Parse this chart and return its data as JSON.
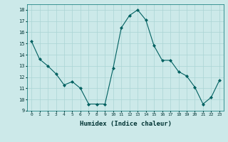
{
  "x": [
    0,
    1,
    2,
    3,
    4,
    5,
    6,
    7,
    8,
    9,
    10,
    11,
    12,
    13,
    14,
    15,
    16,
    17,
    18,
    19,
    20,
    21,
    22,
    23
  ],
  "y": [
    15.2,
    13.6,
    13.0,
    12.3,
    11.3,
    11.6,
    11.0,
    9.6,
    9.6,
    9.6,
    12.8,
    16.4,
    17.5,
    18.0,
    17.1,
    14.8,
    13.5,
    13.5,
    12.5,
    12.1,
    11.1,
    9.6,
    10.2,
    11.7
  ],
  "line_color": "#006060",
  "marker": "D",
  "marker_size": 2.0,
  "background_color": "#cce9e9",
  "grid_color": "#aad4d4",
  "xlabel": "Humidex (Indice chaleur)",
  "xlim": [
    -0.5,
    23.5
  ],
  "ylim": [
    9,
    18.5
  ],
  "yticks": [
    9,
    10,
    11,
    12,
    13,
    14,
    15,
    16,
    17,
    18
  ],
  "xticks": [
    0,
    1,
    2,
    3,
    4,
    5,
    6,
    7,
    8,
    9,
    10,
    11,
    12,
    13,
    14,
    15,
    16,
    17,
    18,
    19,
    20,
    21,
    22,
    23
  ]
}
